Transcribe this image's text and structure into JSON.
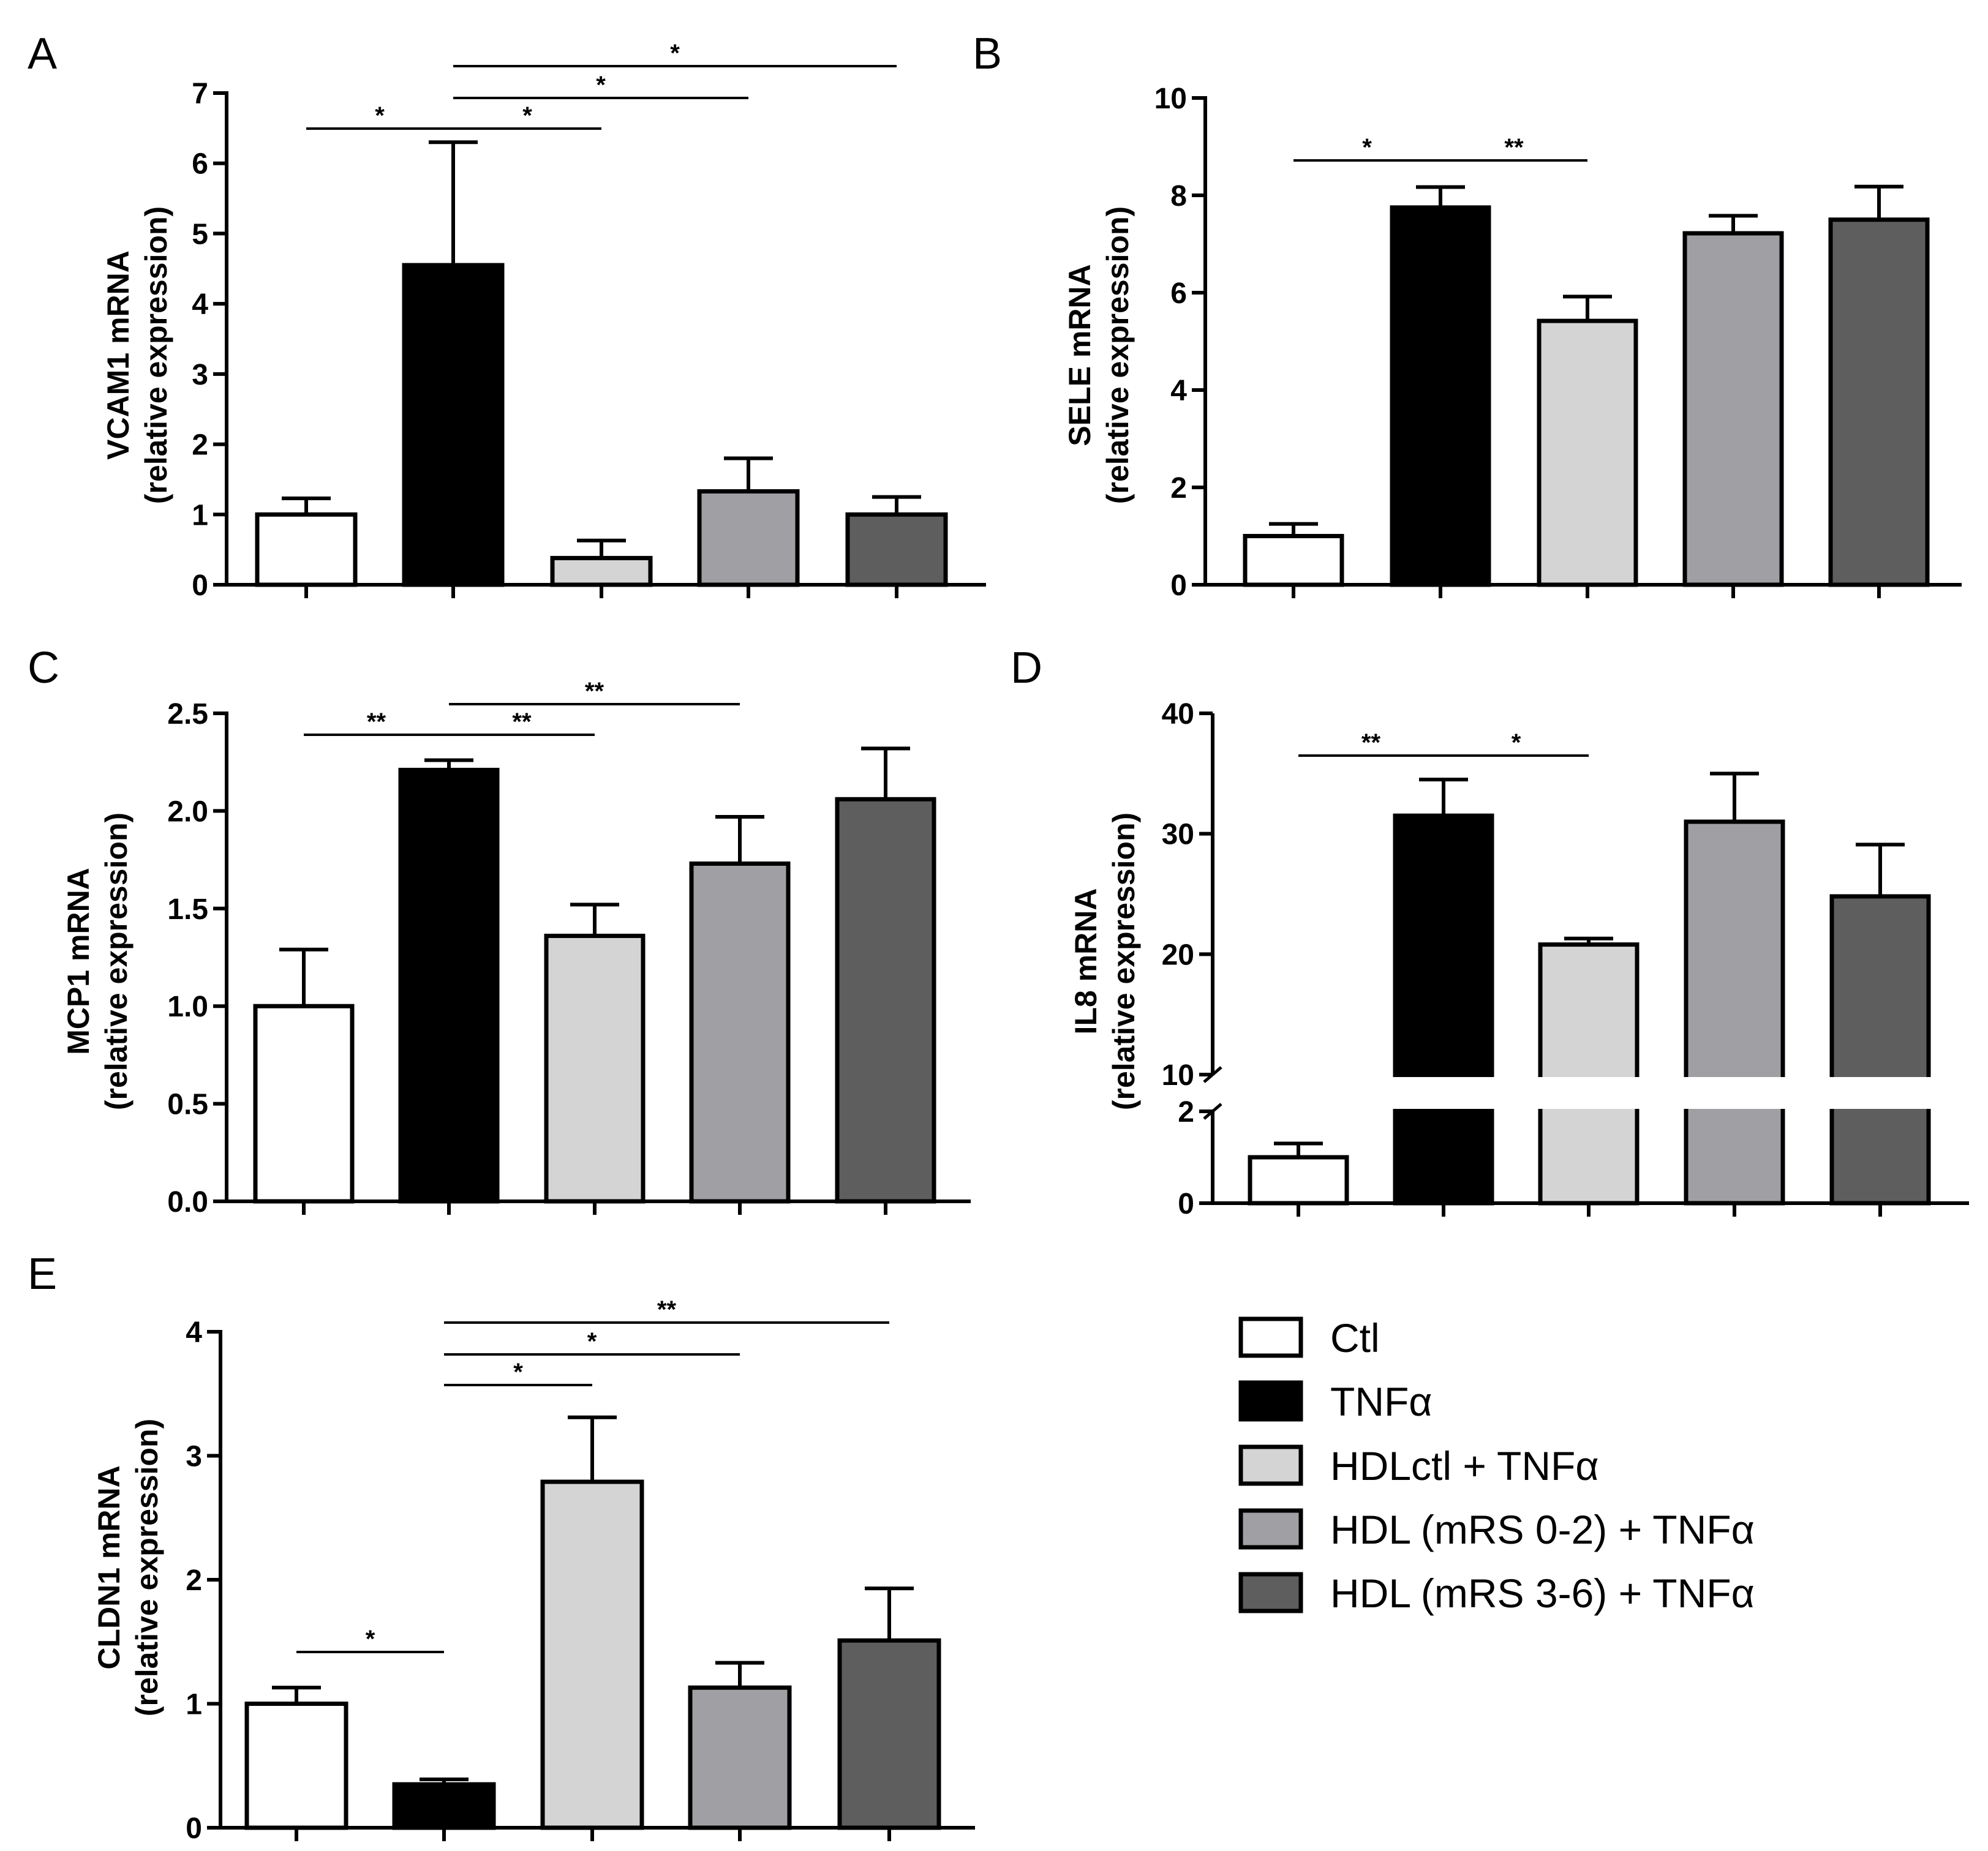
{
  "legend": {
    "items": [
      {
        "label": "Ctl",
        "color": "#ffffff"
      },
      {
        "label": "TNFα",
        "color": "#000000"
      },
      {
        "label": "HDLctl + TNFα",
        "color": "#d4d4d4"
      },
      {
        "label": "HDL (mRS 0-2) + TNFα",
        "color": "#a0a0a4"
      },
      {
        "label": "HDL (mRS 3-6) + TNFα",
        "color": "#5e5e5e"
      }
    ]
  },
  "chart_data": [
    {
      "panel": "A",
      "type": "bar",
      "ylabel1": "VCAM1 mRNA",
      "ylabel2": "(relative expression)",
      "categories": [
        "Ctl",
        "TNFα",
        "HDLctl + TNFα",
        "HDL (mRS 0-2) + TNFα",
        "HDL (mRS 3-6) + TNFα"
      ],
      "values": [
        1.0,
        4.55,
        0.38,
        1.33,
        1.0
      ],
      "errors": [
        0.23,
        1.75,
        0.25,
        0.47,
        0.25
      ],
      "ylim": [
        0,
        7
      ],
      "ticks": [
        0,
        1,
        2,
        3,
        4,
        5,
        6,
        7
      ],
      "tick_labels": [
        "0",
        "1",
        "2",
        "3",
        "4",
        "5",
        "6",
        "7"
      ],
      "significance": [
        {
          "from": 0,
          "to": 1,
          "label": "*"
        },
        {
          "from": 1,
          "to": 2,
          "label": "*"
        },
        {
          "from": 1,
          "to": 3,
          "label": "*"
        },
        {
          "from": 1,
          "to": 4,
          "label": "*"
        }
      ]
    },
    {
      "panel": "B",
      "type": "bar",
      "ylabel1": "SELE mRNA",
      "ylabel2": "(relative expression)",
      "categories": [
        "Ctl",
        "TNFα",
        "HDLctl + TNFα",
        "HDL (mRS 0-2) + TNFα",
        "HDL (mRS 3-6) + TNFα"
      ],
      "values": [
        1.0,
        7.75,
        5.42,
        7.22,
        7.5
      ],
      "errors": [
        0.25,
        0.42,
        0.5,
        0.36,
        0.68
      ],
      "ylim": [
        0,
        10
      ],
      "ticks": [
        0,
        2,
        4,
        6,
        8,
        10
      ],
      "tick_labels": [
        "0",
        "2",
        "4",
        "6",
        "8",
        "10"
      ],
      "significance": [
        {
          "from": 0,
          "to": 1,
          "label": "*"
        },
        {
          "from": 1,
          "to": 2,
          "label": "**"
        }
      ]
    },
    {
      "panel": "C",
      "type": "bar",
      "ylabel1": "MCP1 mRNA",
      "ylabel2": "(relative expression)",
      "categories": [
        "Ctl",
        "TNFα",
        "HDLctl + TNFα",
        "HDL (mRS 0-2) + TNFα",
        "HDL (mRS 3-6) + TNFα"
      ],
      "values": [
        1.0,
        2.21,
        1.36,
        1.73,
        2.06
      ],
      "errors": [
        0.29,
        0.05,
        0.16,
        0.24,
        0.26
      ],
      "ylim": [
        0,
        2.5
      ],
      "ticks": [
        0,
        0.5,
        1,
        1.5,
        2,
        2.5
      ],
      "tick_labels": [
        "0.0",
        "0.5",
        "1.0",
        "1.5",
        "2.0",
        "2.5"
      ],
      "significance": [
        {
          "from": 0,
          "to": 1,
          "label": "**"
        },
        {
          "from": 1,
          "to": 2,
          "label": "**"
        },
        {
          "from": 1,
          "to": 3,
          "label": "**"
        }
      ]
    },
    {
      "panel": "D",
      "type": "bar",
      "ylabel1": "IL8 mRNA",
      "ylabel2": "(relative expression)",
      "categories": [
        "Ctl",
        "TNFα",
        "HDLctl + TNFα",
        "HDL (mRS 0-2) + TNFα",
        "HDL (mRS 3-6) + TNFα"
      ],
      "values": [
        1.0,
        31.5,
        20.8,
        31.0,
        24.8
      ],
      "errors": [
        0.3,
        3.0,
        0.5,
        4.0,
        4.3
      ],
      "broken_axis": {
        "lower": [
          0,
          2
        ],
        "upper": [
          10,
          40
        ]
      },
      "ticks": [
        0,
        2,
        10,
        20,
        30,
        40
      ],
      "tick_labels": [
        "0",
        "2",
        "10",
        "20",
        "30",
        "40"
      ],
      "significance": [
        {
          "from": 0,
          "to": 1,
          "label": "**"
        },
        {
          "from": 1,
          "to": 2,
          "label": "*"
        }
      ]
    },
    {
      "panel": "E",
      "type": "bar",
      "ylabel1": "CLDN1 mRNA",
      "ylabel2": "(relative expression)",
      "categories": [
        "Ctl",
        "TNFα",
        "HDLctl + TNFα",
        "HDL (mRS 0-2) + TNFα",
        "HDL (mRS 3-6) + TNFα"
      ],
      "values": [
        1.0,
        0.35,
        2.79,
        1.13,
        1.51
      ],
      "errors": [
        0.13,
        0.04,
        0.52,
        0.2,
        0.42
      ],
      "ylim": [
        0,
        4
      ],
      "ticks": [
        0,
        1,
        2,
        3,
        4
      ],
      "tick_labels": [
        "0",
        "1",
        "2",
        "3",
        "4"
      ],
      "significance": [
        {
          "from": 0,
          "to": 1,
          "label": "*"
        },
        {
          "from": 1,
          "to": 2,
          "label": "*"
        },
        {
          "from": 1,
          "to": 3,
          "label": "*"
        },
        {
          "from": 1,
          "to": 4,
          "label": "**"
        }
      ]
    }
  ]
}
